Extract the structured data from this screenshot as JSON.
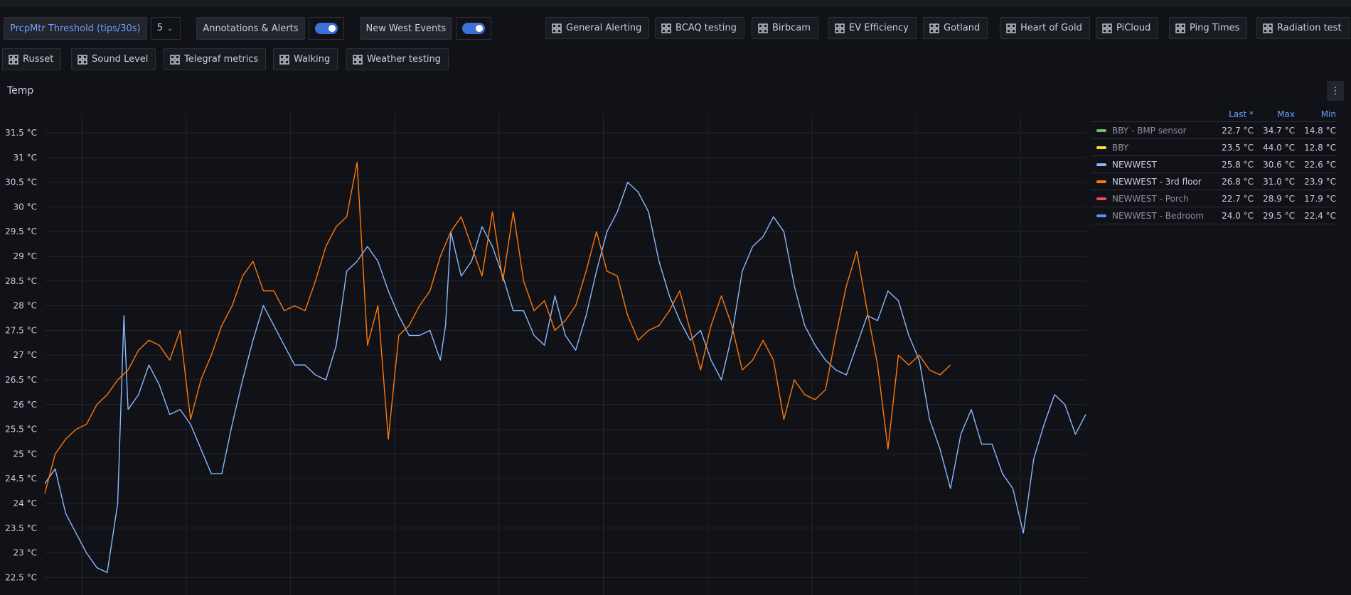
{
  "variables": {
    "threshold_label": "PrcpMtr Threshold (tips/30s)",
    "threshold_value": "5",
    "annotations_label": "Annotations & Alerts",
    "annotations_on": true,
    "events_label": "New West Events",
    "events_on": true
  },
  "dashboard_links": [
    "General Alerting",
    "BCAQ testing",
    "Birbcam",
    "EV Efficiency",
    "Gotland",
    "Heart of Gold",
    "PiCloud",
    "Ping Times",
    "Radiation test",
    "Russet",
    "Sound Level",
    "Telegraf metrics",
    "Walking",
    "Weather testing"
  ],
  "panel": {
    "title": "Temp",
    "menu_icon": "vertical-ellipsis-icon"
  },
  "legend": {
    "headers": [
      "Last *",
      "Max",
      "Min"
    ],
    "rows": [
      {
        "name": "BBY - BMP sensor",
        "color": "#73bf69",
        "last": "22.7 °C",
        "max": "34.7 °C",
        "min": "14.8 °C",
        "active": false
      },
      {
        "name": "BBY",
        "color": "#fade2a",
        "last": "23.5 °C",
        "max": "44.0 °C",
        "min": "12.8 °C",
        "active": false
      },
      {
        "name": "NEWWEST",
        "color": "#8ab8ff",
        "last": "25.8 °C",
        "max": "30.6 °C",
        "min": "22.6 °C",
        "active": true
      },
      {
        "name": "NEWWEST - 3rd floor",
        "color": "#ff780a",
        "last": "26.8 °C",
        "max": "31.0 °C",
        "min": "23.9 °C",
        "active": true
      },
      {
        "name": "NEWWEST - Porch",
        "color": "#f2495c",
        "last": "22.7 °C",
        "max": "28.9 °C",
        "min": "17.9 °C",
        "active": false
      },
      {
        "name": "NEWWEST - Bedroom",
        "color": "#5794f2",
        "last": "24.0 °C",
        "max": "29.5 °C",
        "min": "22.4 °C",
        "active": false
      }
    ]
  },
  "chart_data": {
    "type": "line",
    "title": "Temp",
    "yticks": [
      "31.5 °C",
      "31 °C",
      "30.5 °C",
      "30 °C",
      "29.5 °C",
      "29 °C",
      "28.5 °C",
      "28 °C",
      "27.5 °C",
      "27 °C",
      "26.5 °C",
      "26 °C",
      "25.5 °C",
      "25 °C",
      "24.5 °C",
      "24 °C",
      "23.5 °C",
      "23 °C",
      "22.5 °C"
    ],
    "ylim": [
      22.3,
      31.8
    ],
    "xlim": [
      0,
      100
    ],
    "grid": true,
    "legend_position": "right",
    "series": [
      {
        "name": "NEWWEST",
        "color": "#8ab8ff",
        "points": [
          [
            0,
            24.4
          ],
          [
            1,
            24.7
          ],
          [
            2,
            23.8
          ],
          [
            3,
            23.4
          ],
          [
            4,
            23.0
          ],
          [
            5,
            22.7
          ],
          [
            6,
            22.6
          ],
          [
            7,
            24.0
          ],
          [
            7.6,
            27.8
          ],
          [
            8,
            25.9
          ],
          [
            9,
            26.2
          ],
          [
            10,
            26.8
          ],
          [
            11,
            26.4
          ],
          [
            12,
            25.8
          ],
          [
            13,
            25.9
          ],
          [
            14,
            25.6
          ],
          [
            15,
            25.1
          ],
          [
            16,
            24.6
          ],
          [
            17,
            24.6
          ],
          [
            18,
            25.6
          ],
          [
            19,
            26.5
          ],
          [
            20,
            27.3
          ],
          [
            21,
            28.0
          ],
          [
            22,
            27.6
          ],
          [
            23,
            27.2
          ],
          [
            24,
            26.8
          ],
          [
            25,
            26.8
          ],
          [
            26,
            26.6
          ],
          [
            27,
            26.5
          ],
          [
            28,
            27.2
          ],
          [
            29,
            28.7
          ],
          [
            30,
            28.9
          ],
          [
            31,
            29.2
          ],
          [
            32,
            28.9
          ],
          [
            33,
            28.3
          ],
          [
            34,
            27.8
          ],
          [
            35,
            27.4
          ],
          [
            36,
            27.4
          ],
          [
            37,
            27.5
          ],
          [
            38,
            26.9
          ],
          [
            38.5,
            27.6
          ],
          [
            39,
            29.5
          ],
          [
            40,
            28.6
          ],
          [
            41,
            28.9
          ],
          [
            42,
            29.6
          ],
          [
            43,
            29.2
          ],
          [
            44,
            28.6
          ],
          [
            45,
            27.9
          ],
          [
            46,
            27.9
          ],
          [
            47,
            27.4
          ],
          [
            48,
            27.2
          ],
          [
            49,
            28.2
          ],
          [
            50,
            27.4
          ],
          [
            51,
            27.1
          ],
          [
            52,
            27.8
          ],
          [
            53,
            28.7
          ],
          [
            54,
            29.5
          ],
          [
            55,
            29.9
          ],
          [
            56,
            30.5
          ],
          [
            57,
            30.3
          ],
          [
            58,
            29.9
          ],
          [
            59,
            28.9
          ],
          [
            60,
            28.2
          ],
          [
            61,
            27.7
          ],
          [
            62,
            27.3
          ],
          [
            63,
            27.5
          ],
          [
            64,
            26.9
          ],
          [
            65,
            26.5
          ],
          [
            66,
            27.4
          ],
          [
            67,
            28.7
          ],
          [
            68,
            29.2
          ],
          [
            69,
            29.4
          ],
          [
            70,
            29.8
          ],
          [
            71,
            29.5
          ],
          [
            72,
            28.4
          ],
          [
            73,
            27.6
          ],
          [
            74,
            27.2
          ],
          [
            75,
            26.9
          ],
          [
            76,
            26.7
          ],
          [
            77,
            26.6
          ],
          [
            78,
            27.2
          ],
          [
            79,
            27.8
          ],
          [
            80,
            27.7
          ],
          [
            81,
            28.3
          ],
          [
            82,
            28.1
          ],
          [
            83,
            27.4
          ],
          [
            84,
            26.9
          ],
          [
            85,
            25.7
          ],
          [
            86,
            25.1
          ],
          [
            87,
            24.3
          ],
          [
            88,
            25.4
          ],
          [
            89,
            25.9
          ],
          [
            90,
            25.2
          ],
          [
            91,
            25.2
          ],
          [
            92,
            24.6
          ],
          [
            93,
            24.3
          ],
          [
            94,
            23.4
          ],
          [
            95,
            24.9
          ],
          [
            96,
            25.6
          ],
          [
            97,
            26.2
          ],
          [
            98,
            26.0
          ],
          [
            99,
            25.4
          ],
          [
            100,
            25.8
          ]
        ]
      },
      {
        "name": "NEWWEST - 3rd floor",
        "color": "#ff780a",
        "points": [
          [
            0,
            24.2
          ],
          [
            1,
            25.0
          ],
          [
            2,
            25.3
          ],
          [
            3,
            25.5
          ],
          [
            4,
            25.6
          ],
          [
            5,
            26.0
          ],
          [
            6,
            26.2
          ],
          [
            7,
            26.5
          ],
          [
            8,
            26.7
          ],
          [
            9,
            27.1
          ],
          [
            10,
            27.3
          ],
          [
            11,
            27.2
          ],
          [
            12,
            26.9
          ],
          [
            13,
            27.5
          ],
          [
            14,
            25.7
          ],
          [
            15,
            26.5
          ],
          [
            16,
            27.0
          ],
          [
            17,
            27.6
          ],
          [
            18,
            28.0
          ],
          [
            19,
            28.6
          ],
          [
            20,
            28.9
          ],
          [
            21,
            28.3
          ],
          [
            22,
            28.3
          ],
          [
            23,
            27.9
          ],
          [
            24,
            28.0
          ],
          [
            25,
            27.9
          ],
          [
            26,
            28.5
          ],
          [
            27,
            29.2
          ],
          [
            28,
            29.6
          ],
          [
            29,
            29.8
          ],
          [
            30,
            30.9
          ],
          [
            31,
            27.2
          ],
          [
            32,
            28.0
          ],
          [
            33,
            25.3
          ],
          [
            34,
            27.4
          ],
          [
            35,
            27.6
          ],
          [
            36,
            28.0
          ],
          [
            37,
            28.3
          ],
          [
            38,
            29.0
          ],
          [
            39,
            29.5
          ],
          [
            40,
            29.8
          ],
          [
            41,
            29.2
          ],
          [
            42,
            28.6
          ],
          [
            43,
            29.9
          ],
          [
            44,
            28.5
          ],
          [
            45,
            29.9
          ],
          [
            46,
            28.5
          ],
          [
            47,
            27.9
          ],
          [
            48,
            28.1
          ],
          [
            49,
            27.5
          ],
          [
            50,
            27.7
          ],
          [
            51,
            28.0
          ],
          [
            52,
            28.7
          ],
          [
            53,
            29.5
          ],
          [
            54,
            28.7
          ],
          [
            55,
            28.6
          ],
          [
            56,
            27.8
          ],
          [
            57,
            27.3
          ],
          [
            58,
            27.5
          ],
          [
            59,
            27.6
          ],
          [
            60,
            27.9
          ],
          [
            61,
            28.3
          ],
          [
            62,
            27.5
          ],
          [
            63,
            26.7
          ],
          [
            64,
            27.6
          ],
          [
            65,
            28.2
          ],
          [
            66,
            27.6
          ],
          [
            67,
            26.7
          ],
          [
            68,
            26.9
          ],
          [
            69,
            27.3
          ],
          [
            70,
            26.9
          ],
          [
            71,
            25.7
          ],
          [
            72,
            26.5
          ],
          [
            73,
            26.2
          ],
          [
            74,
            26.1
          ],
          [
            75,
            26.3
          ],
          [
            76,
            27.4
          ],
          [
            77,
            28.4
          ],
          [
            78,
            29.1
          ],
          [
            79,
            27.9
          ],
          [
            80,
            26.8
          ],
          [
            81,
            25.1
          ],
          [
            82,
            27.0
          ],
          [
            83,
            26.8
          ],
          [
            84,
            27.0
          ],
          [
            85,
            26.7
          ],
          [
            86,
            26.6
          ],
          [
            87,
            26.8
          ]
        ]
      }
    ]
  }
}
